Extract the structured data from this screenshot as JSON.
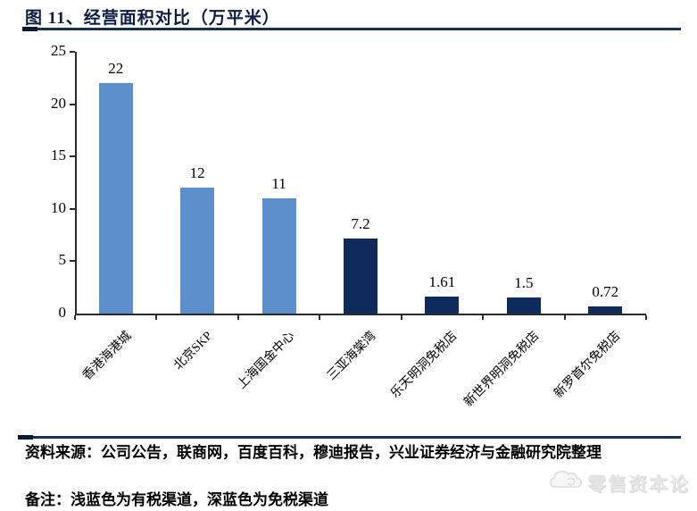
{
  "title": "图 11、经营面积对比（万平米）",
  "chart_data": {
    "type": "bar",
    "title": "经营面积对比（万平米）",
    "categories": [
      "香港海港城",
      "北京SKP",
      "上海国金中心",
      "三亚海棠湾",
      "乐天明洞免税店",
      "新世界明洞免税店",
      "新罗首尔免税店"
    ],
    "values": [
      22,
      12,
      11,
      7.2,
      1.61,
      1.5,
      0.72
    ],
    "value_labels": [
      "22",
      "12",
      "11",
      "7.2",
      "1.61",
      "1.5",
      "0.72"
    ],
    "bar_colors": [
      "#5c8fcb",
      "#5c8fcb",
      "#5c8fcb",
      "#0f2b5b",
      "#0f2b5b",
      "#0f2b5b",
      "#0f2b5b"
    ],
    "color_legend": {
      "light_blue": "有税渠道",
      "dark_blue": "免税渠道"
    },
    "ylim": [
      0,
      25
    ],
    "yticks": [
      0,
      5,
      10,
      15,
      20,
      25
    ],
    "grid": false,
    "legend": "none",
    "x_label_rotation": -45
  },
  "colors": {
    "light_blue": "#5c8fcb",
    "dark_blue": "#0f2b5b",
    "accent_line": "#16305c"
  },
  "footer": {
    "source": "资料来源：公司公告，联商网，百度百科，穆迪报告，兴业证券经济与金融研究院整理",
    "note": "备注：浅蓝色为有税渠道，深蓝色为免税渠道"
  },
  "watermark": {
    "icon": "cloud-logo-icon",
    "text": "零售资本论"
  }
}
